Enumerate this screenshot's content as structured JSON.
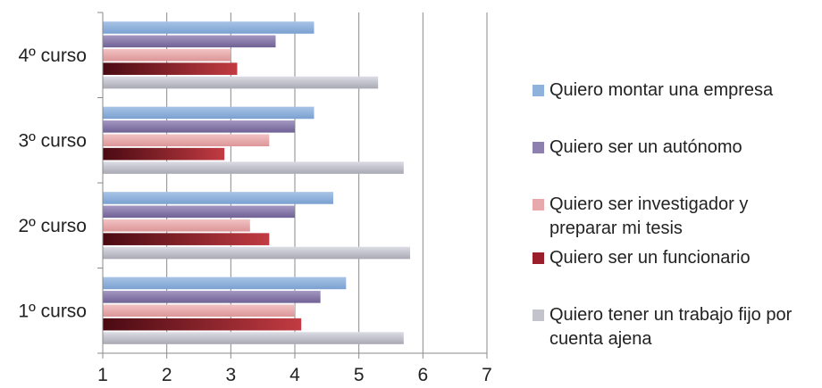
{
  "chart_data": {
    "type": "bar",
    "orientation": "horizontal",
    "categories": [
      "1º curso",
      "2º curso",
      "3º curso",
      "4º curso"
    ],
    "series": [
      {
        "name": "Quiero montar una empresa",
        "color": "#8fb2dc",
        "values": [
          4.8,
          4.6,
          4.3,
          4.3
        ]
      },
      {
        "name": "Quiero ser un autónomo",
        "color": "#8d7fae",
        "values": [
          4.4,
          4.0,
          4.0,
          3.7
        ]
      },
      {
        "name": "Quiero ser investigador y\npreparar mi tesis",
        "color": "#e7a9ab",
        "values": [
          4.0,
          3.3,
          3.6,
          3.0
        ]
      },
      {
        "name": "Quiero ser un funcionario",
        "color": "#9a1f2a",
        "values": [
          4.1,
          3.6,
          2.9,
          3.1
        ]
      },
      {
        "name": "Quiero tener un trabajo fijo por\ncuenta ajena",
        "color": "#c3c3cc",
        "values": [
          5.7,
          5.8,
          5.7,
          5.3
        ]
      }
    ],
    "xlim": [
      1,
      7
    ],
    "xticks": [
      "1",
      "2",
      "3",
      "4",
      "5",
      "6",
      "7"
    ],
    "grid": true,
    "legend": "right",
    "title": "",
    "xlabel": "",
    "ylabel": ""
  }
}
